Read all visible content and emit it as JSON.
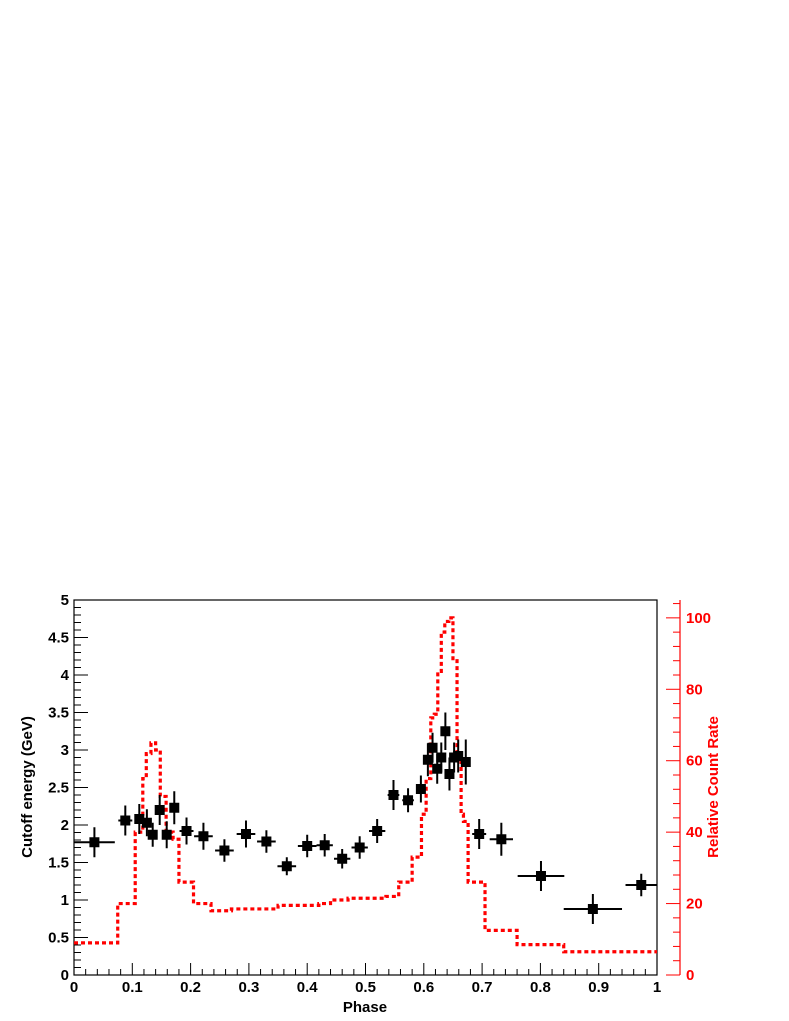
{
  "chart_data": {
    "type": "scatter",
    "xlabel": "Phase",
    "ylabel": "Cutoff energy (GeV)",
    "y2label": "Relative Count Rate",
    "xlim": [
      0,
      1
    ],
    "ylim": [
      0,
      5
    ],
    "y2lim": [
      0,
      105
    ],
    "x_ticks": [
      "0",
      "0.1",
      "0.2",
      "0.3",
      "0.4",
      "0.5",
      "0.6",
      "0.7",
      "0.8",
      "0.9",
      "1"
    ],
    "y_ticks": [
      "0",
      "0.5",
      "1",
      "1.5",
      "2",
      "2.5",
      "3",
      "3.5",
      "4",
      "4.5",
      "5"
    ],
    "y2_ticks": [
      "0",
      "20",
      "40",
      "60",
      "80",
      "100"
    ],
    "colors": {
      "points": "#000000",
      "count_rate": "#ff0000"
    },
    "series": [
      {
        "type": "scatter-errorbars",
        "points": [
          {
            "x": 0.035,
            "xerr": 0.035,
            "y": 1.77,
            "yerr": 0.2
          },
          {
            "x": 0.088,
            "xerr": 0.012,
            "y": 2.06,
            "yerr": 0.2
          },
          {
            "x": 0.112,
            "xerr": 0.006,
            "y": 2.08,
            "yerr": 0.2
          },
          {
            "x": 0.125,
            "xerr": 0.006,
            "y": 2.03,
            "yerr": 0.18
          },
          {
            "x": 0.135,
            "xerr": 0.006,
            "y": 1.87,
            "yerr": 0.16
          },
          {
            "x": 0.147,
            "xerr": 0.006,
            "y": 2.2,
            "yerr": 0.2
          },
          {
            "x": 0.159,
            "xerr": 0.006,
            "y": 1.87,
            "yerr": 0.18
          },
          {
            "x": 0.172,
            "xerr": 0.006,
            "y": 2.23,
            "yerr": 0.22
          },
          {
            "x": 0.193,
            "xerr": 0.012,
            "y": 1.92,
            "yerr": 0.18
          },
          {
            "x": 0.222,
            "xerr": 0.016,
            "y": 1.85,
            "yerr": 0.18
          },
          {
            "x": 0.258,
            "xerr": 0.016,
            "y": 1.66,
            "yerr": 0.15
          },
          {
            "x": 0.295,
            "xerr": 0.016,
            "y": 1.88,
            "yerr": 0.18
          },
          {
            "x": 0.33,
            "xerr": 0.016,
            "y": 1.78,
            "yerr": 0.15
          },
          {
            "x": 0.365,
            "xerr": 0.016,
            "y": 1.45,
            "yerr": 0.12
          },
          {
            "x": 0.4,
            "xerr": 0.016,
            "y": 1.72,
            "yerr": 0.15
          },
          {
            "x": 0.43,
            "xerr": 0.014,
            "y": 1.73,
            "yerr": 0.15
          },
          {
            "x": 0.46,
            "xerr": 0.014,
            "y": 1.55,
            "yerr": 0.13
          },
          {
            "x": 0.49,
            "xerr": 0.014,
            "y": 1.7,
            "yerr": 0.15
          },
          {
            "x": 0.52,
            "xerr": 0.014,
            "y": 1.92,
            "yerr": 0.16
          },
          {
            "x": 0.548,
            "xerr": 0.01,
            "y": 2.4,
            "yerr": 0.2
          },
          {
            "x": 0.573,
            "xerr": 0.01,
            "y": 2.33,
            "yerr": 0.16
          },
          {
            "x": 0.595,
            "xerr": 0.008,
            "y": 2.48,
            "yerr": 0.18
          },
          {
            "x": 0.607,
            "xerr": 0.004,
            "y": 2.87,
            "yerr": 0.22
          },
          {
            "x": 0.615,
            "xerr": 0.004,
            "y": 3.03,
            "yerr": 0.2
          },
          {
            "x": 0.623,
            "xerr": 0.004,
            "y": 2.75,
            "yerr": 0.2
          },
          {
            "x": 0.63,
            "xerr": 0.004,
            "y": 2.9,
            "yerr": 0.2
          },
          {
            "x": 0.637,
            "xerr": 0.004,
            "y": 3.25,
            "yerr": 0.25
          },
          {
            "x": 0.644,
            "xerr": 0.004,
            "y": 2.68,
            "yerr": 0.22
          },
          {
            "x": 0.652,
            "xerr": 0.004,
            "y": 2.9,
            "yerr": 0.2
          },
          {
            "x": 0.659,
            "xerr": 0.004,
            "y": 2.92,
            "yerr": 0.22
          },
          {
            "x": 0.672,
            "xerr": 0.008,
            "y": 2.84,
            "yerr": 0.3
          },
          {
            "x": 0.695,
            "xerr": 0.012,
            "y": 1.88,
            "yerr": 0.2
          },
          {
            "x": 0.733,
            "xerr": 0.02,
            "y": 1.81,
            "yerr": 0.22
          },
          {
            "x": 0.801,
            "xerr": 0.04,
            "y": 1.32,
            "yerr": 0.2
          },
          {
            "x": 0.89,
            "xerr": 0.05,
            "y": 0.88,
            "yerr": 0.2
          },
          {
            "x": 0.973,
            "xerr": 0.027,
            "y": 1.2,
            "yerr": 0.15
          }
        ]
      },
      {
        "type": "step-dashed",
        "axis": "right",
        "steps": [
          {
            "x0": 0,
            "x1": 0.075,
            "y": 9
          },
          {
            "x0": 0.075,
            "x1": 0.105,
            "y": 20
          },
          {
            "x0": 0.105,
            "x1": 0.118,
            "y": 40
          },
          {
            "x0": 0.118,
            "x1": 0.124,
            "y": 55
          },
          {
            "x0": 0.124,
            "x1": 0.132,
            "y": 62
          },
          {
            "x0": 0.132,
            "x1": 0.14,
            "y": 65
          },
          {
            "x0": 0.14,
            "x1": 0.148,
            "y": 63
          },
          {
            "x0": 0.148,
            "x1": 0.158,
            "y": 50
          },
          {
            "x0": 0.158,
            "x1": 0.17,
            "y": 40
          },
          {
            "x0": 0.17,
            "x1": 0.18,
            "y": 38
          },
          {
            "x0": 0.18,
            "x1": 0.205,
            "y": 26
          },
          {
            "x0": 0.205,
            "x1": 0.235,
            "y": 20
          },
          {
            "x0": 0.235,
            "x1": 0.27,
            "y": 18
          },
          {
            "x0": 0.27,
            "x1": 0.35,
            "y": 18.5
          },
          {
            "x0": 0.35,
            "x1": 0.42,
            "y": 19.5
          },
          {
            "x0": 0.42,
            "x1": 0.44,
            "y": 20
          },
          {
            "x0": 0.44,
            "x1": 0.47,
            "y": 21
          },
          {
            "x0": 0.47,
            "x1": 0.535,
            "y": 21.5
          },
          {
            "x0": 0.535,
            "x1": 0.557,
            "y": 22
          },
          {
            "x0": 0.557,
            "x1": 0.58,
            "y": 26
          },
          {
            "x0": 0.58,
            "x1": 0.596,
            "y": 33
          },
          {
            "x0": 0.596,
            "x1": 0.604,
            "y": 45
          },
          {
            "x0": 0.604,
            "x1": 0.612,
            "y": 55
          },
          {
            "x0": 0.612,
            "x1": 0.618,
            "y": 72
          },
          {
            "x0": 0.618,
            "x1": 0.624,
            "y": 73
          },
          {
            "x0": 0.624,
            "x1": 0.63,
            "y": 85
          },
          {
            "x0": 0.63,
            "x1": 0.636,
            "y": 96
          },
          {
            "x0": 0.636,
            "x1": 0.643,
            "y": 99
          },
          {
            "x0": 0.643,
            "x1": 0.65,
            "y": 100
          },
          {
            "x0": 0.65,
            "x1": 0.657,
            "y": 88
          },
          {
            "x0": 0.657,
            "x1": 0.664,
            "y": 62
          },
          {
            "x0": 0.664,
            "x1": 0.668,
            "y": 45
          },
          {
            "x0": 0.668,
            "x1": 0.676,
            "y": 43
          },
          {
            "x0": 0.676,
            "x1": 0.705,
            "y": 26
          },
          {
            "x0": 0.705,
            "x1": 0.76,
            "y": 12.5
          },
          {
            "x0": 0.76,
            "x1": 0.84,
            "y": 8.5
          },
          {
            "x0": 0.84,
            "x1": 1.0,
            "y": 6.5
          }
        ]
      }
    ]
  }
}
